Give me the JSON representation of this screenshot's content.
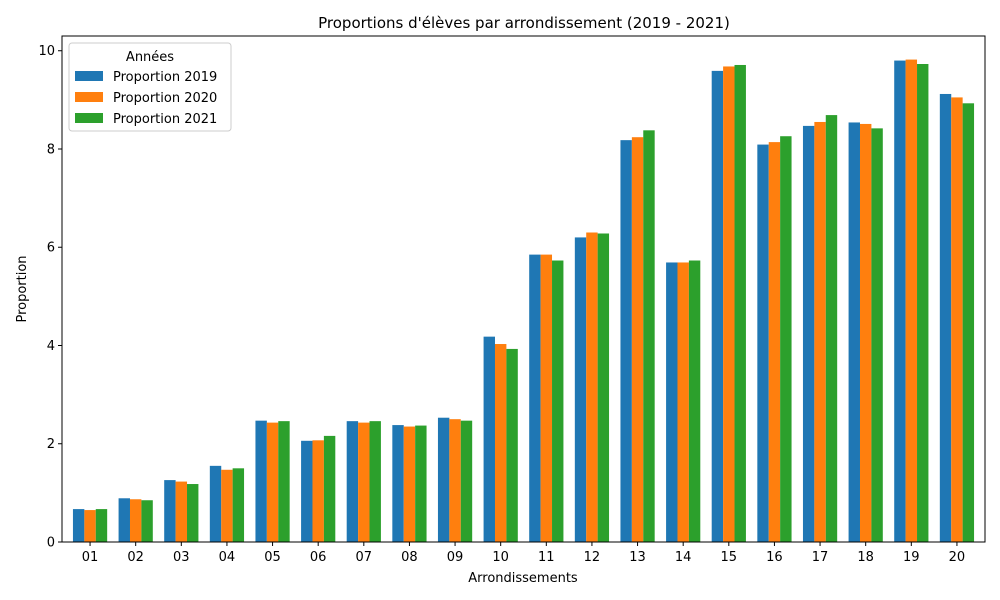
{
  "chart_data": {
    "type": "bar",
    "title": "Proportions d'élèves par arrondissement (2019 - 2021)",
    "xlabel": "Arrondissements",
    "ylabel": "Proportion",
    "ylim": [
      0,
      10.3
    ],
    "yticks": [
      "0",
      "2",
      "4",
      "6",
      "8",
      "10"
    ],
    "grid": false,
    "categories": [
      "01",
      "02",
      "03",
      "04",
      "05",
      "06",
      "07",
      "08",
      "09",
      "10",
      "11",
      "12",
      "13",
      "14",
      "15",
      "16",
      "17",
      "18",
      "19",
      "20"
    ],
    "legend": {
      "title": "Années",
      "placement": "upper-left"
    },
    "series": [
      {
        "name": "Proportion 2019",
        "color": "#1f77b4",
        "values": [
          0.67,
          0.89,
          1.26,
          1.55,
          2.47,
          2.06,
          2.46,
          2.38,
          2.53,
          4.18,
          5.85,
          6.2,
          8.18,
          5.69,
          9.59,
          8.09,
          8.47,
          8.54,
          9.8,
          9.12
        ]
      },
      {
        "name": "Proportion 2020",
        "color": "#ff7f0e",
        "values": [
          0.65,
          0.87,
          1.23,
          1.47,
          2.43,
          2.07,
          2.43,
          2.35,
          2.5,
          4.03,
          5.85,
          6.3,
          8.24,
          5.69,
          9.68,
          8.14,
          8.55,
          8.51,
          9.82,
          9.05
        ]
      },
      {
        "name": "Proportion 2021",
        "color": "#2ca02c",
        "values": [
          0.67,
          0.85,
          1.18,
          1.5,
          2.46,
          2.16,
          2.46,
          2.37,
          2.47,
          3.93,
          5.73,
          6.28,
          8.38,
          5.73,
          9.71,
          8.26,
          8.69,
          8.42,
          9.73,
          8.93
        ]
      }
    ]
  }
}
